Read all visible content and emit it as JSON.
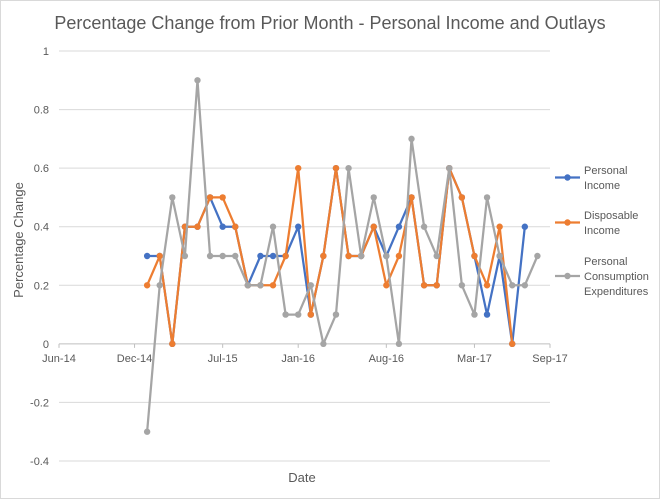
{
  "chart_data": {
    "type": "line",
    "title": "Percentage Change from Prior Month - Personal Income and Outlays",
    "xlabel": "Date",
    "ylabel": "Percentage Change",
    "ylim": [
      -0.4,
      1.0
    ],
    "y_ticks": [
      "-0.4",
      "-0.2",
      "0",
      "0.2",
      "0.4",
      "0.6",
      "0.8",
      "1"
    ],
    "y_tick_values": [
      -0.4,
      -0.2,
      0,
      0.2,
      0.4,
      0.6,
      0.8,
      1.0
    ],
    "x_ticks": [
      "Jun-14",
      "Dec-14",
      "Jul-15",
      "Jan-16",
      "Aug-16",
      "Mar-17",
      "Sep-17"
    ],
    "x_tick_values": [
      "2014-06",
      "2014-12",
      "2015-07",
      "2016-01",
      "2016-08",
      "2017-03",
      "2017-09"
    ],
    "xlim": [
      "2014-06",
      "2017-09"
    ],
    "legend_position": "right",
    "series": [
      {
        "name": "Personal Income",
        "color": "#4472c4",
        "x": [
          "2015-01",
          "2015-02",
          "2015-03",
          "2015-04",
          "2015-05",
          "2015-06",
          "2015-07",
          "2015-08",
          "2015-09",
          "2015-10",
          "2015-11",
          "2015-12",
          "2016-01",
          "2016-02",
          "2016-03",
          "2016-04",
          "2016-05",
          "2016-06",
          "2016-07",
          "2016-08",
          "2016-09",
          "2016-10",
          "2016-11",
          "2016-12",
          "2017-01",
          "2017-02",
          "2017-03",
          "2017-04",
          "2017-05",
          "2017-06",
          "2017-07",
          "2017-08"
        ],
        "values": [
          0.3,
          0.3,
          0.0,
          0.4,
          0.4,
          0.5,
          0.4,
          0.4,
          0.2,
          0.3,
          0.3,
          0.3,
          0.4,
          0.1,
          0.3,
          0.6,
          0.3,
          0.3,
          0.4,
          0.3,
          0.4,
          0.5,
          0.2,
          0.2,
          0.6,
          0.5,
          0.3,
          0.1,
          0.3,
          0.0,
          0.4,
          null
        ]
      },
      {
        "name": "Disposable Income",
        "color": "#ed7d31",
        "x": [
          "2015-01",
          "2015-02",
          "2015-03",
          "2015-04",
          "2015-05",
          "2015-06",
          "2015-07",
          "2015-08",
          "2015-09",
          "2015-10",
          "2015-11",
          "2015-12",
          "2016-01",
          "2016-02",
          "2016-03",
          "2016-04",
          "2016-05",
          "2016-06",
          "2016-07",
          "2016-08",
          "2016-09",
          "2016-10",
          "2016-11",
          "2016-12",
          "2017-01",
          "2017-02",
          "2017-03",
          "2017-04",
          "2017-05",
          "2017-06",
          "2017-07",
          "2017-08"
        ],
        "values": [
          0.2,
          0.3,
          0.0,
          0.4,
          0.4,
          0.5,
          0.5,
          0.4,
          0.2,
          0.2,
          0.2,
          0.3,
          0.6,
          0.1,
          0.3,
          0.6,
          0.3,
          0.3,
          0.4,
          0.2,
          0.3,
          0.5,
          0.2,
          0.2,
          0.6,
          0.5,
          0.3,
          0.2,
          0.4,
          0.0,
          null,
          null
        ]
      },
      {
        "name": "Personal Consumption Expenditures",
        "color": "#a5a5a5",
        "x": [
          "2015-01",
          "2015-02",
          "2015-03",
          "2015-04",
          "2015-05",
          "2015-06",
          "2015-07",
          "2015-08",
          "2015-09",
          "2015-10",
          "2015-11",
          "2015-12",
          "2016-01",
          "2016-02",
          "2016-03",
          "2016-04",
          "2016-05",
          "2016-06",
          "2016-07",
          "2016-08",
          "2016-09",
          "2016-10",
          "2016-11",
          "2016-12",
          "2017-01",
          "2017-02",
          "2017-03",
          "2017-04",
          "2017-05",
          "2017-06",
          "2017-07",
          "2017-08"
        ],
        "values": [
          -0.3,
          0.2,
          0.5,
          0.3,
          0.9,
          0.3,
          0.3,
          0.3,
          0.2,
          0.2,
          0.4,
          0.1,
          0.1,
          0.2,
          0.0,
          0.1,
          0.6,
          0.3,
          0.5,
          0.3,
          0.0,
          0.7,
          0.4,
          0.3,
          0.6,
          0.2,
          0.1,
          0.5,
          0.3,
          0.2,
          0.2,
          0.3
        ]
      }
    ]
  },
  "legend": {
    "items": [
      {
        "lines": [
          "Personal",
          "Income"
        ],
        "color": "#4472c4"
      },
      {
        "lines": [
          "Disposable",
          "Income"
        ],
        "color": "#ed7d31"
      },
      {
        "lines": [
          "Personal",
          "Consumption",
          "Expenditures"
        ],
        "color": "#a5a5a5"
      }
    ]
  }
}
